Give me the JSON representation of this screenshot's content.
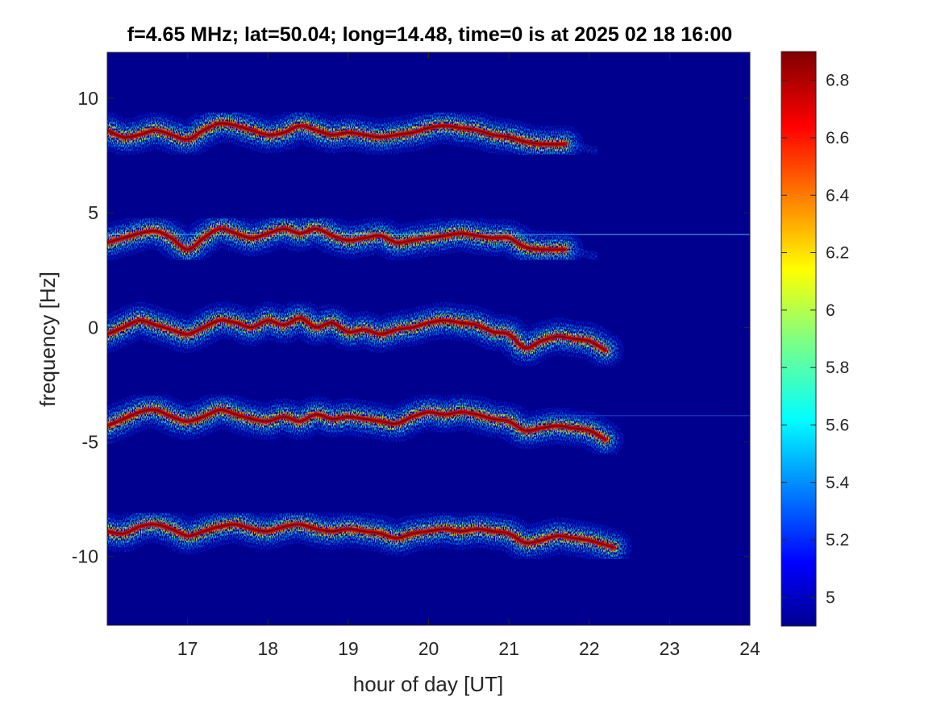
{
  "chart_data": {
    "type": "heatmap",
    "title": "f=4.65 MHz;  lat=50.04; long=14.48, time=0 is at 2025 02 18 16:00",
    "xlabel": "hour of day [UT]",
    "ylabel": "frequency [Hz]",
    "xlim": [
      16,
      24
    ],
    "ylim": [
      -13,
      12
    ],
    "x_ticks": [
      17,
      18,
      19,
      20,
      21,
      22,
      23,
      24
    ],
    "y_ticks": [
      -10,
      -5,
      0,
      5,
      10
    ],
    "x_tick_labels": [
      "17",
      "18",
      "19",
      "20",
      "21",
      "22",
      "23",
      "24"
    ],
    "y_tick_labels": [
      "-10",
      "-5",
      "0",
      "5",
      "10"
    ],
    "colorbar": {
      "range": [
        4.9,
        6.9
      ],
      "ticks": [
        5,
        5.2,
        5.4,
        5.6,
        5.8,
        6,
        6.2,
        6.4,
        6.6,
        6.8
      ],
      "tick_labels": [
        "5",
        "5.2",
        "5.4",
        "5.6",
        "5.8",
        "6",
        "6.2",
        "6.4",
        "6.6",
        "6.8"
      ],
      "colormap": "jet"
    },
    "background_color": "#00008f",
    "traces": [
      {
        "center_freq": 8.5,
        "x_start": 16.02,
        "x_end": 21.7,
        "tail_end": 22.1,
        "points": [
          [
            16.0,
            8.6
          ],
          [
            16.2,
            8.3
          ],
          [
            16.4,
            8.4
          ],
          [
            16.6,
            8.6
          ],
          [
            16.8,
            8.4
          ],
          [
            17.0,
            8.2
          ],
          [
            17.2,
            8.6
          ],
          [
            17.4,
            8.9
          ],
          [
            17.6,
            8.8
          ],
          [
            17.8,
            8.6
          ],
          [
            18.0,
            8.4
          ],
          [
            18.2,
            8.5
          ],
          [
            18.4,
            8.8
          ],
          [
            18.6,
            8.6
          ],
          [
            18.8,
            8.4
          ],
          [
            19.0,
            8.5
          ],
          [
            19.2,
            8.4
          ],
          [
            19.4,
            8.3
          ],
          [
            19.6,
            8.4
          ],
          [
            19.8,
            8.5
          ],
          [
            20.0,
            8.7
          ],
          [
            20.2,
            8.8
          ],
          [
            20.4,
            8.7
          ],
          [
            20.6,
            8.6
          ],
          [
            20.8,
            8.4
          ],
          [
            21.0,
            8.3
          ],
          [
            21.2,
            8.1
          ],
          [
            21.4,
            8.0
          ],
          [
            21.7,
            8.0
          ]
        ]
      },
      {
        "center_freq": 4.0,
        "x_start": 16.02,
        "x_end": 21.7,
        "tail_end": 22.1,
        "points": [
          [
            16.0,
            3.7
          ],
          [
            16.2,
            3.9
          ],
          [
            16.4,
            4.1
          ],
          [
            16.6,
            4.2
          ],
          [
            16.8,
            3.9
          ],
          [
            17.0,
            3.4
          ],
          [
            17.2,
            3.9
          ],
          [
            17.4,
            4.3
          ],
          [
            17.6,
            4.1
          ],
          [
            17.8,
            3.9
          ],
          [
            18.0,
            4.1
          ],
          [
            18.2,
            4.3
          ],
          [
            18.4,
            4.1
          ],
          [
            18.6,
            4.3
          ],
          [
            18.8,
            4.0
          ],
          [
            19.0,
            3.8
          ],
          [
            19.2,
            3.9
          ],
          [
            19.4,
            4.0
          ],
          [
            19.6,
            3.7
          ],
          [
            19.8,
            3.8
          ],
          [
            20.0,
            3.9
          ],
          [
            20.2,
            4.0
          ],
          [
            20.4,
            4.1
          ],
          [
            20.6,
            4.0
          ],
          [
            20.8,
            3.9
          ],
          [
            21.0,
            3.9
          ],
          [
            21.2,
            3.5
          ],
          [
            21.4,
            3.4
          ],
          [
            21.7,
            3.4
          ]
        ]
      },
      {
        "center_freq": 0.0,
        "x_start": 16.02,
        "x_end": 22.2,
        "tail_end": 22.2,
        "points": [
          [
            16.0,
            -0.3
          ],
          [
            16.2,
            0.0
          ],
          [
            16.4,
            0.3
          ],
          [
            16.6,
            0.1
          ],
          [
            16.8,
            -0.1
          ],
          [
            17.0,
            -0.3
          ],
          [
            17.2,
            0.0
          ],
          [
            17.4,
            0.3
          ],
          [
            17.6,
            0.2
          ],
          [
            17.8,
            0.0
          ],
          [
            18.0,
            0.3
          ],
          [
            18.2,
            0.1
          ],
          [
            18.4,
            0.4
          ],
          [
            18.6,
            0.0
          ],
          [
            18.8,
            0.2
          ],
          [
            19.0,
            -0.2
          ],
          [
            19.2,
            -0.1
          ],
          [
            19.4,
            -0.3
          ],
          [
            19.6,
            -0.1
          ],
          [
            19.8,
            0.0
          ],
          [
            20.0,
            0.2
          ],
          [
            20.2,
            0.3
          ],
          [
            20.4,
            0.2
          ],
          [
            20.6,
            0.1
          ],
          [
            20.8,
            -0.2
          ],
          [
            21.0,
            -0.3
          ],
          [
            21.2,
            -0.9
          ],
          [
            21.4,
            -0.6
          ],
          [
            21.6,
            -0.4
          ],
          [
            21.8,
            -0.5
          ],
          [
            22.0,
            -0.6
          ],
          [
            22.2,
            -1.0
          ]
        ]
      },
      {
        "center_freq": -4.0,
        "x_start": 16.02,
        "x_end": 22.2,
        "tail_end": 22.2,
        "points": [
          [
            16.0,
            -4.3
          ],
          [
            16.2,
            -4.0
          ],
          [
            16.4,
            -3.7
          ],
          [
            16.6,
            -3.6
          ],
          [
            16.8,
            -3.9
          ],
          [
            17.0,
            -4.1
          ],
          [
            17.2,
            -3.9
          ],
          [
            17.4,
            -3.6
          ],
          [
            17.6,
            -3.8
          ],
          [
            17.8,
            -4.0
          ],
          [
            18.0,
            -4.1
          ],
          [
            18.2,
            -3.9
          ],
          [
            18.4,
            -4.1
          ],
          [
            18.6,
            -3.8
          ],
          [
            18.8,
            -4.0
          ],
          [
            19.0,
            -3.9
          ],
          [
            19.2,
            -4.0
          ],
          [
            19.4,
            -4.1
          ],
          [
            19.6,
            -4.2
          ],
          [
            19.8,
            -3.9
          ],
          [
            20.0,
            -3.7
          ],
          [
            20.2,
            -3.8
          ],
          [
            20.4,
            -3.7
          ],
          [
            20.6,
            -3.8
          ],
          [
            20.8,
            -4.0
          ],
          [
            21.0,
            -4.1
          ],
          [
            21.2,
            -4.5
          ],
          [
            21.4,
            -4.4
          ],
          [
            21.6,
            -4.3
          ],
          [
            21.8,
            -4.4
          ],
          [
            22.0,
            -4.5
          ],
          [
            22.2,
            -4.9
          ]
        ]
      },
      {
        "center_freq": -9.0,
        "x_start": 16.02,
        "x_end": 22.3,
        "tail_end": 22.3,
        "points": [
          [
            16.0,
            -8.9
          ],
          [
            16.2,
            -9.0
          ],
          [
            16.4,
            -8.7
          ],
          [
            16.6,
            -8.6
          ],
          [
            16.8,
            -8.8
          ],
          [
            17.0,
            -9.1
          ],
          [
            17.2,
            -8.9
          ],
          [
            17.4,
            -8.7
          ],
          [
            17.6,
            -8.6
          ],
          [
            17.8,
            -8.8
          ],
          [
            18.0,
            -8.9
          ],
          [
            18.2,
            -8.7
          ],
          [
            18.4,
            -8.6
          ],
          [
            18.6,
            -8.8
          ],
          [
            18.8,
            -8.9
          ],
          [
            19.0,
            -8.8
          ],
          [
            19.2,
            -8.9
          ],
          [
            19.4,
            -9.0
          ],
          [
            19.6,
            -9.2
          ],
          [
            19.8,
            -9.0
          ],
          [
            20.0,
            -8.9
          ],
          [
            20.2,
            -8.8
          ],
          [
            20.4,
            -8.9
          ],
          [
            20.6,
            -8.8
          ],
          [
            20.8,
            -8.9
          ],
          [
            21.0,
            -9.0
          ],
          [
            21.2,
            -9.4
          ],
          [
            21.4,
            -9.3
          ],
          [
            21.6,
            -9.1
          ],
          [
            21.8,
            -9.2
          ],
          [
            22.0,
            -9.3
          ],
          [
            22.3,
            -9.6
          ]
        ]
      }
    ],
    "lines": [
      {
        "freq": 4.05,
        "x_start": 16.0,
        "x_end": 24.0,
        "color": "#7cf0ff",
        "strength": 0.55
      },
      {
        "freq": -3.85,
        "x_start": 21.5,
        "x_end": 24.0,
        "color": "#3aa0ff",
        "strength": 0.35
      }
    ]
  }
}
